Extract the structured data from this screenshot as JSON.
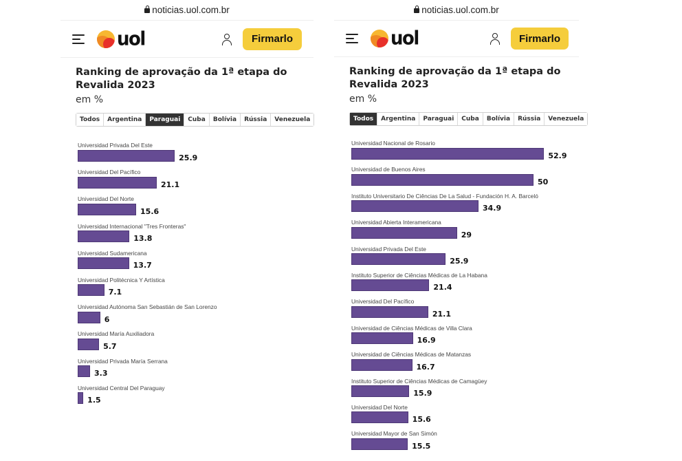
{
  "browser": {
    "url": "noticias.uol.com.br",
    "lock_icon": "lock-icon"
  },
  "header": {
    "menu_icon": "hamburger-menu-icon",
    "logo_text": "uol",
    "user_icon": "user-icon",
    "cta_label": "Firmarlo"
  },
  "colors": {
    "bar": "#654b93",
    "cta": "#f5cd3c",
    "active_tab": "#333333"
  },
  "chart_data": [
    {
      "type": "bar",
      "orientation": "horizontal",
      "title": "Ranking de aprovação da 1ª etapa do Revalida 2023",
      "subtitle": "em %",
      "tabs": [
        "Todos",
        "Argentina",
        "Paraguai",
        "Cuba",
        "Bolívia",
        "Rússia",
        "Venezuela"
      ],
      "active_tab": "Paraguai",
      "xlim": [
        0,
        55
      ],
      "categories": [
        "Universidad Privada Del Este",
        "Universidad Del Pacífico",
        "Universidad Del Norte",
        "Universidad Internacional \"Tres Fronteras\"",
        "Universidad Sudamericana",
        "Universidad Politécnica Y Artística",
        "Universidad Autónoma San Sebastián de San Lorenzo",
        "Universidad María Auxiliadora",
        "Universidad Privada María Serrana",
        "Universidad Central Del Paraguay"
      ],
      "values": [
        25.9,
        21.1,
        15.6,
        13.8,
        13.7,
        7.1,
        6,
        5.7,
        3.3,
        1.5
      ],
      "value_labels": [
        "25.9",
        "21.1",
        "15.6",
        "13.8",
        "13.7",
        "7.1",
        "6",
        "5.7",
        "3.3",
        "1.5"
      ]
    },
    {
      "type": "bar",
      "orientation": "horizontal",
      "title": "Ranking de aprovação da 1ª etapa do Revalida 2023",
      "subtitle": "em %",
      "tabs": [
        "Todos",
        "Argentina",
        "Paraguai",
        "Cuba",
        "Bolívia",
        "Rússia",
        "Venezuela"
      ],
      "active_tab": "Todos",
      "xlim": [
        0,
        55
      ],
      "categories": [
        "Universidad Nacional de Rosario",
        "Universidad de Buenos Aires",
        "Instituto Universitario De Ciências De La Salud - Fundación H. A. Barceló",
        "Universidad Abierta Interamericana",
        "Universidad Privada Del Este",
        "Instituto Superior de Ciências Médicas de La Habana",
        "Universidad Del Pacífico",
        "Universidad de Ciências Médicas de Villa Clara",
        "Universidad de Ciências Médicas de Matanzas",
        "Instituto Superior de Ciências Médicas de Camagüey",
        "Universidad Del Norte",
        "Universidad Mayor de San Simón"
      ],
      "values": [
        52.9,
        50,
        34.9,
        29,
        25.9,
        21.4,
        21.1,
        16.9,
        16.7,
        15.9,
        15.6,
        15.5
      ],
      "value_labels": [
        "52.9",
        "50",
        "34.9",
        "29",
        "25.9",
        "21.4",
        "21.1",
        "16.9",
        "16.7",
        "15.9",
        "15.6",
        "15.5"
      ]
    }
  ]
}
